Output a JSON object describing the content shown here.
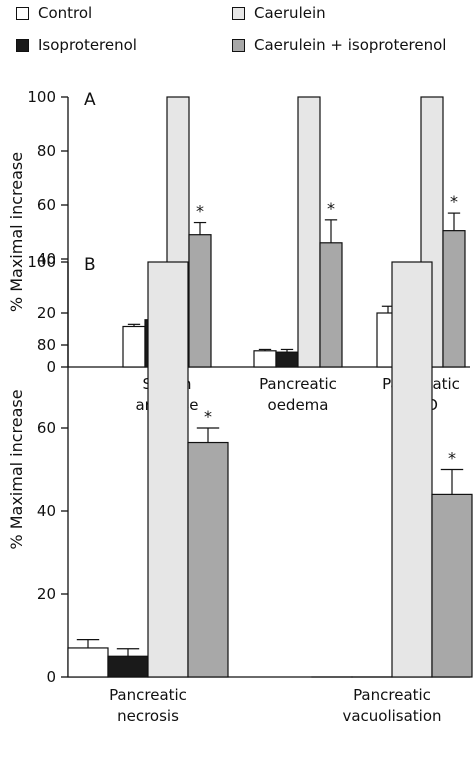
{
  "legend": [
    {
      "label": "Control",
      "color": "#ffffff"
    },
    {
      "label": "Isoproterenol",
      "color": "#1a1a1a"
    },
    {
      "label": "Caerulein",
      "color": "#e6e6e6"
    },
    {
      "label": "Caerulein + isoproterenol",
      "color": "#a8a8a8"
    }
  ],
  "chart_data": [
    {
      "type": "bar",
      "panel_label": "A",
      "ylabel": "% Maximal increase",
      "ylim": [
        0,
        100
      ],
      "yticks": [
        0,
        20,
        40,
        60,
        80,
        100
      ],
      "categories": [
        [
          "Serum",
          "amylase"
        ],
        [
          "Pancreatic",
          "oedema"
        ],
        [
          "Pancreatic",
          "MPO"
        ]
      ],
      "series": [
        {
          "name": "Control",
          "values": [
            15,
            6,
            20
          ],
          "errors": [
            0.8,
            0.5,
            2.5
          ]
        },
        {
          "name": "Isoproterenol",
          "values": [
            17.5,
            5.5,
            22
          ],
          "errors": [
            1.2,
            1,
            2
          ]
        },
        {
          "name": "Caerulein",
          "values": [
            100,
            100,
            100
          ],
          "errors": [
            0,
            0,
            0
          ]
        },
        {
          "name": "Caerulein + isoproterenol",
          "values": [
            49,
            46,
            50.5
          ],
          "errors": [
            4.5,
            8.5,
            6.5
          ]
        }
      ],
      "significance_marker": "*",
      "significant_series": "Caerulein + isoproterenol"
    },
    {
      "type": "bar",
      "panel_label": "B",
      "ylabel": "% Maximal increase",
      "ylim": [
        0,
        100
      ],
      "yticks": [
        0,
        20,
        40,
        60,
        80,
        100
      ],
      "categories": [
        [
          "Pancreatic",
          "necrosis"
        ],
        [
          "Pancreatic",
          "vacuolisation"
        ]
      ],
      "series": [
        {
          "name": "Control",
          "values": [
            7,
            0
          ],
          "errors": [
            2,
            0
          ]
        },
        {
          "name": "Isoproterenol",
          "values": [
            5,
            0
          ],
          "errors": [
            1.8,
            0
          ]
        },
        {
          "name": "Caerulein",
          "values": [
            100,
            100
          ],
          "errors": [
            0,
            0
          ]
        },
        {
          "name": "Caerulein + isoproterenol",
          "values": [
            56.5,
            44
          ],
          "errors": [
            3.5,
            6
          ]
        }
      ],
      "significance_marker": "*",
      "significant_series": "Caerulein + isoproterenol"
    }
  ]
}
